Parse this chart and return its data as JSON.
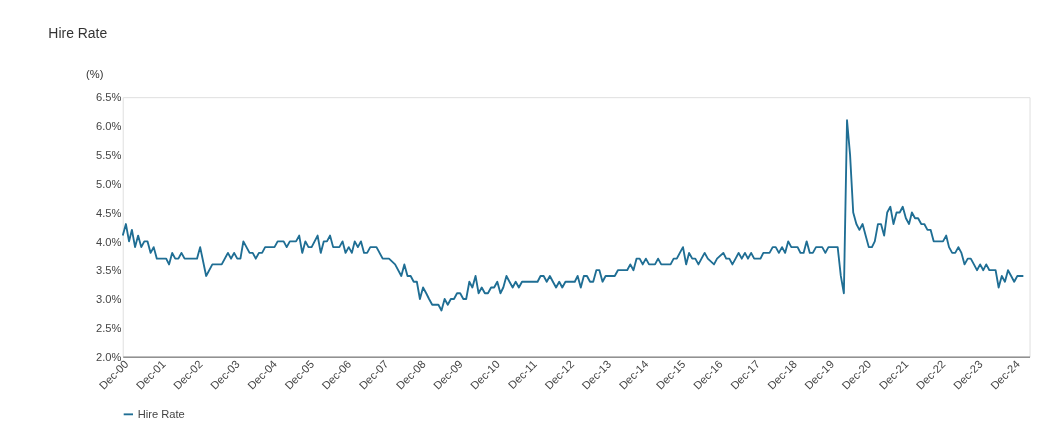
{
  "chart_data": {
    "type": "line",
    "title": "Hire Rate",
    "ylabel": "(%)",
    "x": [
      "2000-12",
      "2001-01",
      "2001-02",
      "2001-03",
      "2001-04",
      "2001-05",
      "2001-06",
      "2001-07",
      "2001-08",
      "2001-09",
      "2001-10",
      "2001-11",
      "2002-02",
      "2002-03",
      "2002-04",
      "2002-05",
      "2002-06",
      "2002-07",
      "2002-08",
      "2002-12",
      "2003-01",
      "2003-03",
      "2003-05",
      "2003-08",
      "2003-10",
      "2003-11",
      "2003-12",
      "2004-01",
      "2004-02",
      "2004-03",
      "2004-05",
      "2004-06",
      "2004-07",
      "2004-08",
      "2004-09",
      "2004-10",
      "2005-01",
      "2005-02",
      "2005-04",
      "2005-05",
      "2005-06",
      "2005-08",
      "2005-09",
      "2005-10",
      "2005-11",
      "2005-12",
      "2006-01",
      "2006-03",
      "2006-04",
      "2006-05",
      "2006-06",
      "2006-07",
      "2006-08",
      "2006-10",
      "2006-11",
      "2006-12",
      "2007-01",
      "2007-02",
      "2007-03",
      "2007-04",
      "2007-05",
      "2007-06",
      "2007-07",
      "2007-08",
      "2007-10",
      "2007-12",
      "2008-02",
      "2008-04",
      "2008-06",
      "2008-07",
      "2008-08",
      "2008-09",
      "2008-10",
      "2008-11",
      "2008-12",
      "2009-01",
      "2009-02",
      "2009-03",
      "2009-04",
      "2009-06",
      "2009-07",
      "2009-08",
      "2009-09",
      "2009-10",
      "2009-11",
      "2009-12",
      "2010-01",
      "2010-02",
      "2010-03",
      "2010-04",
      "2010-05",
      "2010-06",
      "2010-07",
      "2010-08",
      "2010-09",
      "2010-10",
      "2010-11",
      "2010-12",
      "2011-01",
      "2011-02",
      "2011-03",
      "2011-04",
      "2011-05",
      "2011-06",
      "2011-07",
      "2011-08",
      "2011-09",
      "2012-02",
      "2012-03",
      "2012-04",
      "2012-05",
      "2012-06",
      "2012-07",
      "2012-08",
      "2012-09",
      "2012-10",
      "2012-11",
      "2013-02",
      "2013-03",
      "2013-04",
      "2013-05",
      "2013-06",
      "2013-07",
      "2013-08",
      "2013-09",
      "2013-10",
      "2013-11",
      "2013-12",
      "2014-03",
      "2014-04",
      "2014-07",
      "2014-08",
      "2014-09",
      "2014-10",
      "2014-11",
      "2014-12",
      "2015-01",
      "2015-02",
      "2015-04",
      "2015-05",
      "2015-06",
      "2015-09",
      "2015-10",
      "2015-11",
      "2015-12",
      "2016-01",
      "2016-02",
      "2016-03",
      "2016-04",
      "2016-05",
      "2016-06",
      "2016-07",
      "2016-08",
      "2016-09",
      "2016-11",
      "2016-12",
      "2017-02",
      "2017-03",
      "2017-04",
      "2017-05",
      "2017-06",
      "2017-07",
      "2017-08",
      "2017-09",
      "2017-10",
      "2017-11",
      "2017-12",
      "2018-02",
      "2018-03",
      "2018-05",
      "2018-06",
      "2018-07",
      "2018-08",
      "2018-09",
      "2018-10",
      "2018-11",
      "2018-12",
      "2019-02",
      "2019-03",
      "2019-04",
      "2019-05",
      "2019-06",
      "2019-07",
      "2019-08",
      "2019-10",
      "2019-11",
      "2019-12",
      "2020-03",
      "2020-04",
      "2020-05",
      "2020-06",
      "2020-07",
      "2020-08",
      "2020-09",
      "2020-10",
      "2020-11",
      "2020-12",
      "2021-01",
      "2021-02",
      "2021-03",
      "2021-04",
      "2021-05",
      "2021-06",
      "2021-07",
      "2021-08",
      "2021-09",
      "2021-10",
      "2021-11",
      "2021-12",
      "2022-01",
      "2022-02",
      "2022-03",
      "2022-04",
      "2022-05",
      "2022-06",
      "2022-07",
      "2022-08",
      "2022-09",
      "2022-10",
      "2023-01",
      "2023-02",
      "2023-03",
      "2023-04",
      "2023-05",
      "2023-06",
      "2023-07",
      "2023-08",
      "2023-09",
      "2023-10",
      "2023-11",
      "2023-12",
      "2024-01",
      "2024-02",
      "2024-03",
      "2024-04",
      "2024-06",
      "2024-07",
      "2024-08",
      "2024-09",
      "2024-10",
      "2024-11",
      "2024-12",
      "2025-01",
      "2025-03"
    ],
    "series": [
      {
        "name": "Hire Rate",
        "color": "#1f6e94",
        "values": [
          4.1,
          4.3,
          4.0,
          4.2,
          3.9,
          4.1,
          3.9,
          4.0,
          4.0,
          3.8,
          3.9,
          3.7,
          3.7,
          3.6,
          3.8,
          3.7,
          3.7,
          3.8,
          3.7,
          3.7,
          3.9,
          3.4,
          3.6,
          3.6,
          3.8,
          3.7,
          3.8,
          3.7,
          3.7,
          4.0,
          3.8,
          3.8,
          3.7,
          3.8,
          3.8,
          3.9,
          3.9,
          4.0,
          4.0,
          3.9,
          4.0,
          4.0,
          4.1,
          3.8,
          4.0,
          3.9,
          3.9,
          4.1,
          3.8,
          4.0,
          4.0,
          4.1,
          3.9,
          3.9,
          4.0,
          3.8,
          3.9,
          3.8,
          4.0,
          3.9,
          4.0,
          3.8,
          3.8,
          3.9,
          3.9,
          3.7,
          3.7,
          3.6,
          3.4,
          3.6,
          3.4,
          3.4,
          3.3,
          3.3,
          3.0,
          3.2,
          3.1,
          3.0,
          2.9,
          2.9,
          2.8,
          3.0,
          2.9,
          3.0,
          3.0,
          3.1,
          3.1,
          3.0,
          3.0,
          3.3,
          3.2,
          3.4,
          3.1,
          3.2,
          3.1,
          3.1,
          3.2,
          3.2,
          3.3,
          3.1,
          3.2,
          3.4,
          3.3,
          3.2,
          3.3,
          3.2,
          3.3,
          3.3,
          3.4,
          3.4,
          3.3,
          3.4,
          3.3,
          3.2,
          3.3,
          3.2,
          3.3,
          3.3,
          3.4,
          3.2,
          3.4,
          3.4,
          3.3,
          3.3,
          3.5,
          3.5,
          3.3,
          3.4,
          3.4,
          3.5,
          3.5,
          3.6,
          3.5,
          3.7,
          3.7,
          3.6,
          3.7,
          3.6,
          3.6,
          3.7,
          3.6,
          3.6,
          3.7,
          3.7,
          3.8,
          3.9,
          3.6,
          3.8,
          3.7,
          3.7,
          3.6,
          3.7,
          3.8,
          3.7,
          3.6,
          3.7,
          3.8,
          3.7,
          3.7,
          3.6,
          3.7,
          3.8,
          3.7,
          3.8,
          3.7,
          3.8,
          3.7,
          3.7,
          3.8,
          3.8,
          3.9,
          3.9,
          3.8,
          3.9,
          3.8,
          4.0,
          3.9,
          3.9,
          3.8,
          3.8,
          4.0,
          3.8,
          3.8,
          3.9,
          3.9,
          3.8,
          3.9,
          3.9,
          3.4,
          3.1,
          6.1,
          5.5,
          4.5,
          4.3,
          4.2,
          4.3,
          4.1,
          3.9,
          3.9,
          4.0,
          4.3,
          4.3,
          4.1,
          4.5,
          4.6,
          4.3,
          4.5,
          4.5,
          4.6,
          4.4,
          4.3,
          4.5,
          4.4,
          4.4,
          4.3,
          4.3,
          4.2,
          4.2,
          4.0,
          4.0,
          4.1,
          3.9,
          3.8,
          3.8,
          3.9,
          3.8,
          3.6,
          3.7,
          3.7,
          3.6,
          3.5,
          3.6,
          3.5,
          3.6,
          3.5,
          3.5,
          3.2,
          3.4,
          3.3,
          3.5,
          3.4,
          3.3,
          3.4,
          3.4
        ]
      }
    ],
    "xlim": [
      "2000-12",
      "2025-05"
    ],
    "xticks": [
      {
        "value": "2000-12",
        "label": "Dec-00"
      },
      {
        "value": "2001-12",
        "label": "Dec-01"
      },
      {
        "value": "2002-12",
        "label": "Dec-02"
      },
      {
        "value": "2003-12",
        "label": "Dec-03"
      },
      {
        "value": "2004-12",
        "label": "Dec-04"
      },
      {
        "value": "2005-12",
        "label": "Dec-05"
      },
      {
        "value": "2006-12",
        "label": "Dec-06"
      },
      {
        "value": "2007-12",
        "label": "Dec-07"
      },
      {
        "value": "2008-12",
        "label": "Dec-08"
      },
      {
        "value": "2009-12",
        "label": "Dec-09"
      },
      {
        "value": "2010-12",
        "label": "Dec-10"
      },
      {
        "value": "2011-12",
        "label": "Dec-11"
      },
      {
        "value": "2012-12",
        "label": "Dec-12"
      },
      {
        "value": "2013-12",
        "label": "Dec-13"
      },
      {
        "value": "2014-12",
        "label": "Dec-14"
      },
      {
        "value": "2015-12",
        "label": "Dec-15"
      },
      {
        "value": "2016-12",
        "label": "Dec-16"
      },
      {
        "value": "2017-12",
        "label": "Dec-17"
      },
      {
        "value": "2018-12",
        "label": "Dec-18"
      },
      {
        "value": "2019-12",
        "label": "Dec-19"
      },
      {
        "value": "2020-12",
        "label": "Dec-20"
      },
      {
        "value": "2021-12",
        "label": "Dec-21"
      },
      {
        "value": "2022-12",
        "label": "Dec-22"
      },
      {
        "value": "2023-12",
        "label": "Dec-23"
      },
      {
        "value": "2024-12",
        "label": "Dec-24"
      }
    ],
    "ylim": [
      2.0,
      6.5
    ],
    "yticks": [
      {
        "value": 2.0,
        "label": "2.0%"
      },
      {
        "value": 2.5,
        "label": "2.5%"
      },
      {
        "value": 3.0,
        "label": "3.0%"
      },
      {
        "value": 3.5,
        "label": "3.5%"
      },
      {
        "value": 4.0,
        "label": "4.0%"
      },
      {
        "value": 4.5,
        "label": "4.5%"
      },
      {
        "value": 5.0,
        "label": "5.0%"
      },
      {
        "value": 5.5,
        "label": "5.5%"
      },
      {
        "value": 6.0,
        "label": "6.0%"
      },
      {
        "value": 6.5,
        "label": "6.5%"
      }
    ],
    "grid": false,
    "legend": "bottom",
    "marker": "none",
    "line_style": "solid"
  }
}
